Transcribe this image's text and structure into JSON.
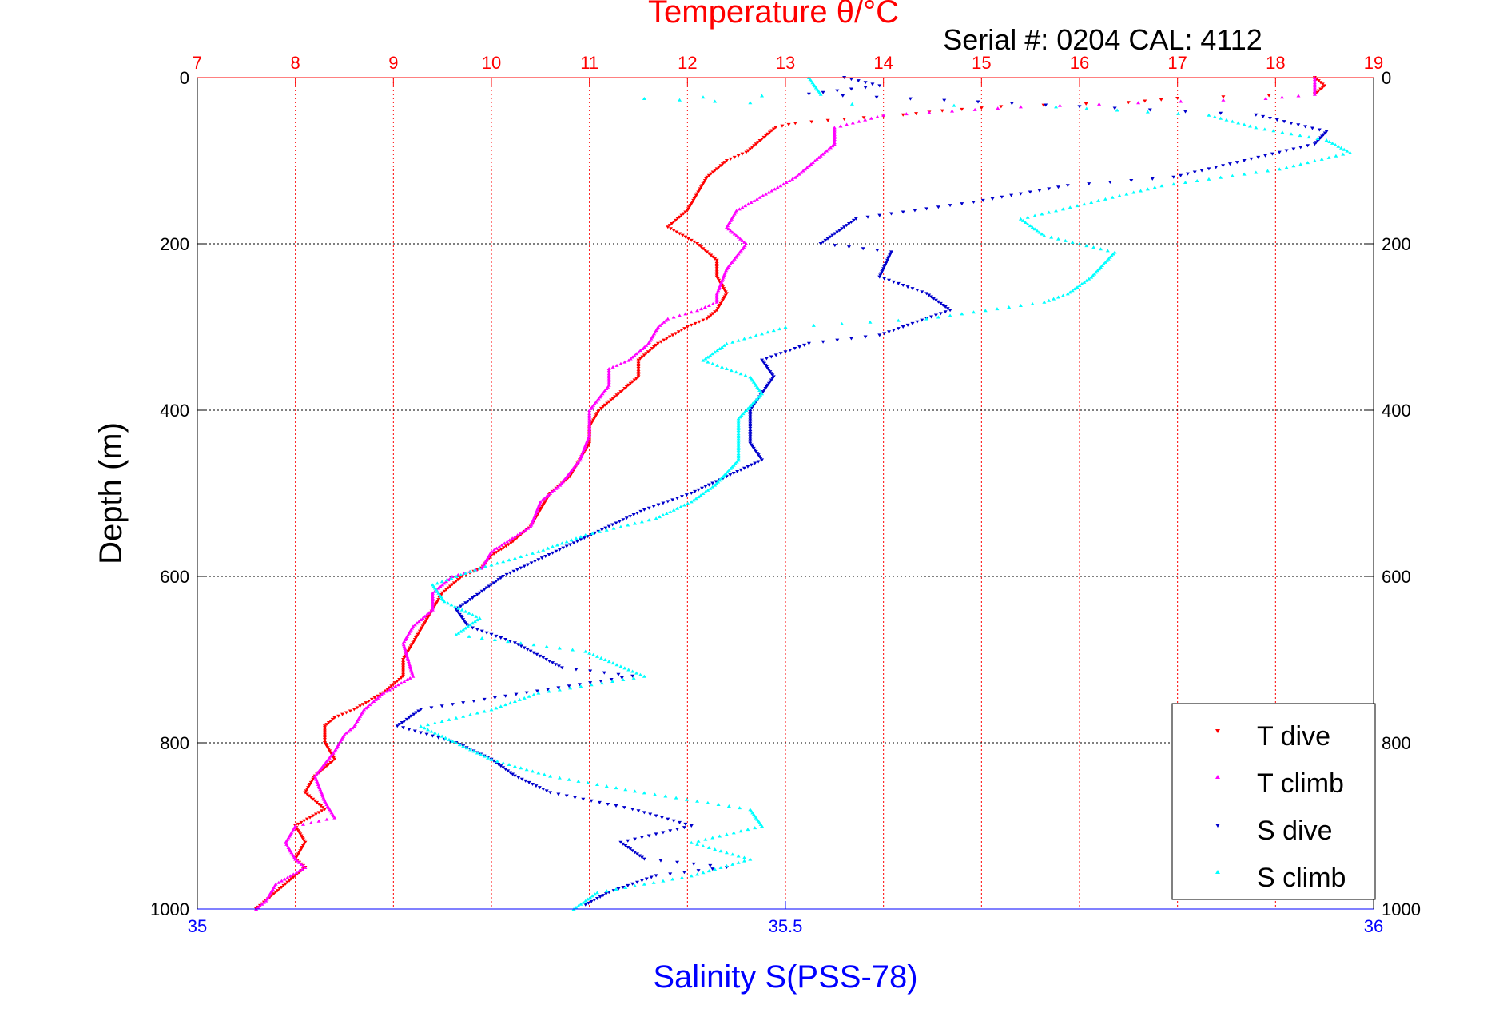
{
  "colors": {
    "t_dive": "#ff0000",
    "t_climb": "#ff00ff",
    "s_dive": "#0000cc",
    "s_climb": "#00ffff",
    "temperature_axis": "#ff0000",
    "salinity_axis": "#0000ff"
  },
  "chart_data": {
    "type": "scatter",
    "title": "Temperature θ/°C",
    "subtitle": "Serial #: 0204  CAL: 4112",
    "xlabel": "Salinity S(PSS-78)",
    "ylabel": "Depth (m)",
    "grid": true,
    "legend_position": "bottom-right",
    "x_top": {
      "label": "Temperature θ/°C",
      "range": [
        7,
        19
      ],
      "ticks": [
        "7",
        "8",
        "9",
        "10",
        "11",
        "12",
        "13",
        "14",
        "15",
        "16",
        "17",
        "18",
        "19"
      ]
    },
    "x_bottom": {
      "label": "Salinity S(PSS-78)",
      "range": [
        35,
        36
      ],
      "ticks": [
        "35",
        "35.5",
        "36"
      ]
    },
    "y": {
      "label": "Depth (m)",
      "range": [
        0,
        1000
      ],
      "reversed": true,
      "ticks": [
        "0",
        "200",
        "400",
        "600",
        "800",
        "1000"
      ]
    },
    "series": [
      {
        "name": "T dive",
        "axis": "temperature",
        "points": [
          [
            18.4,
            0
          ],
          [
            18.5,
            10
          ],
          [
            18.4,
            20
          ],
          [
            17.0,
            25
          ],
          [
            16.5,
            30
          ],
          [
            15.2,
            35
          ],
          [
            14.6,
            40
          ],
          [
            14.2,
            45
          ],
          [
            13.6,
            50
          ],
          [
            13.1,
            55
          ],
          [
            12.9,
            60
          ],
          [
            12.8,
            70
          ],
          [
            12.7,
            80
          ],
          [
            12.6,
            90
          ],
          [
            12.4,
            100
          ],
          [
            12.2,
            120
          ],
          [
            12.1,
            140
          ],
          [
            12.0,
            160
          ],
          [
            11.8,
            180
          ],
          [
            12.1,
            200
          ],
          [
            12.3,
            220
          ],
          [
            12.3,
            240
          ],
          [
            12.4,
            260
          ],
          [
            12.3,
            280
          ],
          [
            12.2,
            290
          ],
          [
            12.0,
            300
          ],
          [
            11.7,
            320
          ],
          [
            11.5,
            340
          ],
          [
            11.5,
            360
          ],
          [
            11.3,
            380
          ],
          [
            11.1,
            400
          ],
          [
            11.0,
            420
          ],
          [
            11.0,
            440
          ],
          [
            10.9,
            460
          ],
          [
            10.8,
            480
          ],
          [
            10.6,
            500
          ],
          [
            10.5,
            520
          ],
          [
            10.4,
            540
          ],
          [
            10.2,
            560
          ],
          [
            10.0,
            575
          ],
          [
            9.9,
            590
          ],
          [
            9.7,
            600
          ],
          [
            9.5,
            620
          ],
          [
            9.4,
            640
          ],
          [
            9.3,
            660
          ],
          [
            9.2,
            680
          ],
          [
            9.1,
            700
          ],
          [
            9.1,
            720
          ],
          [
            8.9,
            740
          ],
          [
            8.6,
            760
          ],
          [
            8.4,
            770
          ],
          [
            8.3,
            780
          ],
          [
            8.3,
            800
          ],
          [
            8.4,
            820
          ],
          [
            8.2,
            840
          ],
          [
            8.1,
            860
          ],
          [
            8.3,
            880
          ],
          [
            8.0,
            900
          ],
          [
            8.1,
            920
          ],
          [
            8.0,
            940
          ],
          [
            8.1,
            950
          ],
          [
            8.0,
            960
          ],
          [
            7.9,
            970
          ],
          [
            7.7,
            990
          ],
          [
            7.6,
            1000
          ]
        ]
      },
      {
        "name": "T climb",
        "axis": "temperature",
        "points": [
          [
            18.4,
            0
          ],
          [
            18.4,
            20
          ],
          [
            17.9,
            25
          ],
          [
            16.6,
            30
          ],
          [
            15.4,
            35
          ],
          [
            14.7,
            40
          ],
          [
            14.0,
            45
          ],
          [
            13.5,
            60
          ],
          [
            13.5,
            80
          ],
          [
            13.3,
            100
          ],
          [
            13.1,
            120
          ],
          [
            12.8,
            140
          ],
          [
            12.5,
            160
          ],
          [
            12.4,
            180
          ],
          [
            12.5,
            190
          ],
          [
            12.6,
            200
          ],
          [
            12.4,
            230
          ],
          [
            12.3,
            260
          ],
          [
            12.3,
            270
          ],
          [
            12.1,
            280
          ],
          [
            11.8,
            290
          ],
          [
            11.7,
            300
          ],
          [
            11.6,
            320
          ],
          [
            11.4,
            340
          ],
          [
            11.2,
            350
          ],
          [
            11.2,
            370
          ],
          [
            11.0,
            400
          ],
          [
            11.0,
            430
          ],
          [
            10.9,
            460
          ],
          [
            10.7,
            490
          ],
          [
            10.5,
            510
          ],
          [
            10.4,
            540
          ],
          [
            10.0,
            570
          ],
          [
            9.9,
            590
          ],
          [
            9.6,
            600
          ],
          [
            9.4,
            620
          ],
          [
            9.4,
            640
          ],
          [
            9.2,
            660
          ],
          [
            9.1,
            680
          ],
          [
            9.2,
            720
          ],
          [
            8.9,
            740
          ],
          [
            8.7,
            760
          ],
          [
            8.6,
            780
          ],
          [
            8.5,
            790
          ],
          [
            8.4,
            810
          ],
          [
            8.2,
            840
          ],
          [
            8.3,
            870
          ],
          [
            8.4,
            890
          ],
          [
            8.0,
            900
          ],
          [
            7.9,
            920
          ],
          [
            8.0,
            940
          ],
          [
            8.1,
            950
          ],
          [
            7.8,
            970
          ],
          [
            7.7,
            990
          ],
          [
            7.6,
            1000
          ]
        ]
      },
      {
        "name": "S dive",
        "axis": "salinity",
        "points": [
          [
            35.55,
            0
          ],
          [
            35.58,
            10
          ],
          [
            35.52,
            20
          ],
          [
            35.75,
            35
          ],
          [
            35.9,
            45
          ],
          [
            35.93,
            55
          ],
          [
            35.96,
            65
          ],
          [
            35.95,
            80
          ],
          [
            35.89,
            100
          ],
          [
            35.83,
            120
          ],
          [
            35.74,
            130
          ],
          [
            35.66,
            150
          ],
          [
            35.56,
            170
          ],
          [
            35.53,
            200
          ],
          [
            35.59,
            210
          ],
          [
            35.58,
            240
          ],
          [
            35.62,
            260
          ],
          [
            35.64,
            280
          ],
          [
            35.58,
            310
          ],
          [
            35.52,
            320
          ],
          [
            35.48,
            340
          ],
          [
            35.49,
            360
          ],
          [
            35.48,
            380
          ],
          [
            35.47,
            400
          ],
          [
            35.47,
            420
          ],
          [
            35.47,
            440
          ],
          [
            35.48,
            460
          ],
          [
            35.45,
            480
          ],
          [
            35.42,
            500
          ],
          [
            35.38,
            520
          ],
          [
            35.35,
            540
          ],
          [
            35.32,
            560
          ],
          [
            35.29,
            580
          ],
          [
            35.26,
            600
          ],
          [
            35.24,
            620
          ],
          [
            35.22,
            640
          ],
          [
            35.23,
            660
          ],
          [
            35.27,
            680
          ],
          [
            35.31,
            710
          ],
          [
            35.37,
            720
          ],
          [
            35.28,
            740
          ],
          [
            35.19,
            760
          ],
          [
            35.17,
            780
          ],
          [
            35.22,
            800
          ],
          [
            35.25,
            820
          ],
          [
            35.27,
            840
          ],
          [
            35.3,
            860
          ],
          [
            35.37,
            880
          ],
          [
            35.42,
            900
          ],
          [
            35.36,
            920
          ],
          [
            35.38,
            940
          ],
          [
            35.45,
            950
          ],
          [
            35.39,
            960
          ],
          [
            35.35,
            980
          ],
          [
            35.33,
            995
          ]
        ]
      },
      {
        "name": "S climb",
        "axis": "salinity",
        "points": [
          [
            35.52,
            0
          ],
          [
            35.53,
            20
          ],
          [
            35.38,
            25
          ],
          [
            35.47,
            30
          ],
          [
            35.73,
            35
          ],
          [
            35.86,
            45
          ],
          [
            35.9,
            60
          ],
          [
            35.96,
            75
          ],
          [
            35.98,
            90
          ],
          [
            35.92,
            110
          ],
          [
            35.82,
            130
          ],
          [
            35.76,
            150
          ],
          [
            35.7,
            170
          ],
          [
            35.72,
            190
          ],
          [
            35.78,
            210
          ],
          [
            35.76,
            240
          ],
          [
            35.74,
            260
          ],
          [
            35.72,
            270
          ],
          [
            35.62,
            290
          ],
          [
            35.5,
            300
          ],
          [
            35.45,
            320
          ],
          [
            35.43,
            340
          ],
          [
            35.47,
            360
          ],
          [
            35.48,
            380
          ],
          [
            35.46,
            410
          ],
          [
            35.46,
            440
          ],
          [
            35.46,
            460
          ],
          [
            35.44,
            490
          ],
          [
            35.42,
            510
          ],
          [
            35.39,
            530
          ],
          [
            35.33,
            550
          ],
          [
            35.29,
            570
          ],
          [
            35.24,
            590
          ],
          [
            35.2,
            610
          ],
          [
            35.21,
            630
          ],
          [
            35.24,
            650
          ],
          [
            35.22,
            670
          ],
          [
            35.33,
            690
          ],
          [
            35.38,
            720
          ],
          [
            35.29,
            740
          ],
          [
            35.25,
            760
          ],
          [
            35.19,
            780
          ],
          [
            35.22,
            800
          ],
          [
            35.25,
            820
          ],
          [
            35.3,
            840
          ],
          [
            35.38,
            860
          ],
          [
            35.47,
            880
          ],
          [
            35.48,
            900
          ],
          [
            35.42,
            920
          ],
          [
            35.47,
            940
          ],
          [
            35.42,
            960
          ],
          [
            35.34,
            980
          ],
          [
            35.32,
            1000
          ]
        ]
      }
    ]
  }
}
